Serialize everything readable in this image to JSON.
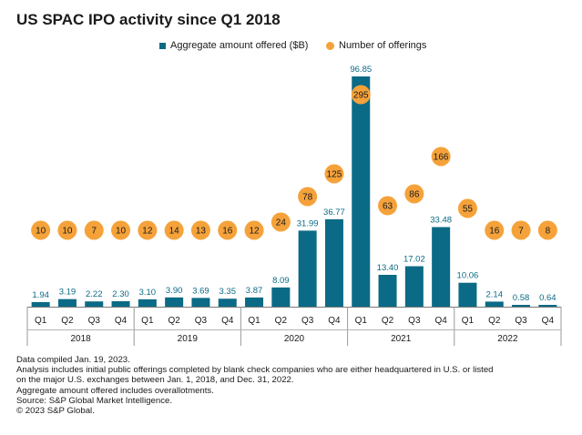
{
  "title": "US SPAC IPO activity since Q1 2018",
  "legend": {
    "bars_label": "Aggregate amount offered ($B)",
    "dots_label": "Number of offerings"
  },
  "colors": {
    "bar": "#0b6a86",
    "dot": "#f5a23a"
  },
  "notes": [
    "Data compiled Jan. 19, 2023.",
    "Analysis includes initial public offerings completed by blank check companies who are either headquartered in U.S. or listed",
    "on the major U.S. exchanges between Jan. 1, 2018, and Dec. 31, 2022.",
    "Aggregate amount offered includes overallotments.",
    "Source: S&P Global Market Intelligence.",
    "© 2023 S&P Global."
  ],
  "chart_data": {
    "type": "bar",
    "title": "US SPAC IPO activity since Q1 2018",
    "categories": [
      "Q1",
      "Q2",
      "Q3",
      "Q4",
      "Q1",
      "Q2",
      "Q3",
      "Q4",
      "Q1",
      "Q2",
      "Q3",
      "Q4",
      "Q1",
      "Q2",
      "Q3",
      "Q4",
      "Q1",
      "Q2",
      "Q3",
      "Q4"
    ],
    "years": [
      "2018",
      "2019",
      "2020",
      "2021",
      "2022"
    ],
    "series": [
      {
        "name": "Aggregate amount offered ($B)",
        "type": "bar",
        "values": [
          1.94,
          3.19,
          2.22,
          2.3,
          3.1,
          3.9,
          3.69,
          3.35,
          3.87,
          8.09,
          31.99,
          36.77,
          96.85,
          13.4,
          17.02,
          33.48,
          10.06,
          2.14,
          0.58,
          0.64
        ],
        "labels": [
          "1.94",
          "3.19",
          "2.22",
          "2.30",
          "3.10",
          "3.90",
          "3.69",
          "3.35",
          "3.87",
          "8.09",
          "31.99",
          "36.77",
          "96.85",
          "13.40",
          "17.02",
          "33.48",
          "10.06",
          "2.14",
          "0.58",
          "0.64"
        ]
      },
      {
        "name": "Number of offerings",
        "type": "scatter",
        "values": [
          10,
          10,
          7,
          10,
          12,
          14,
          13,
          16,
          12,
          24,
          78,
          125,
          295,
          63,
          86,
          166,
          55,
          16,
          7,
          8
        ]
      }
    ],
    "legend_position": "top",
    "grid": false
  }
}
